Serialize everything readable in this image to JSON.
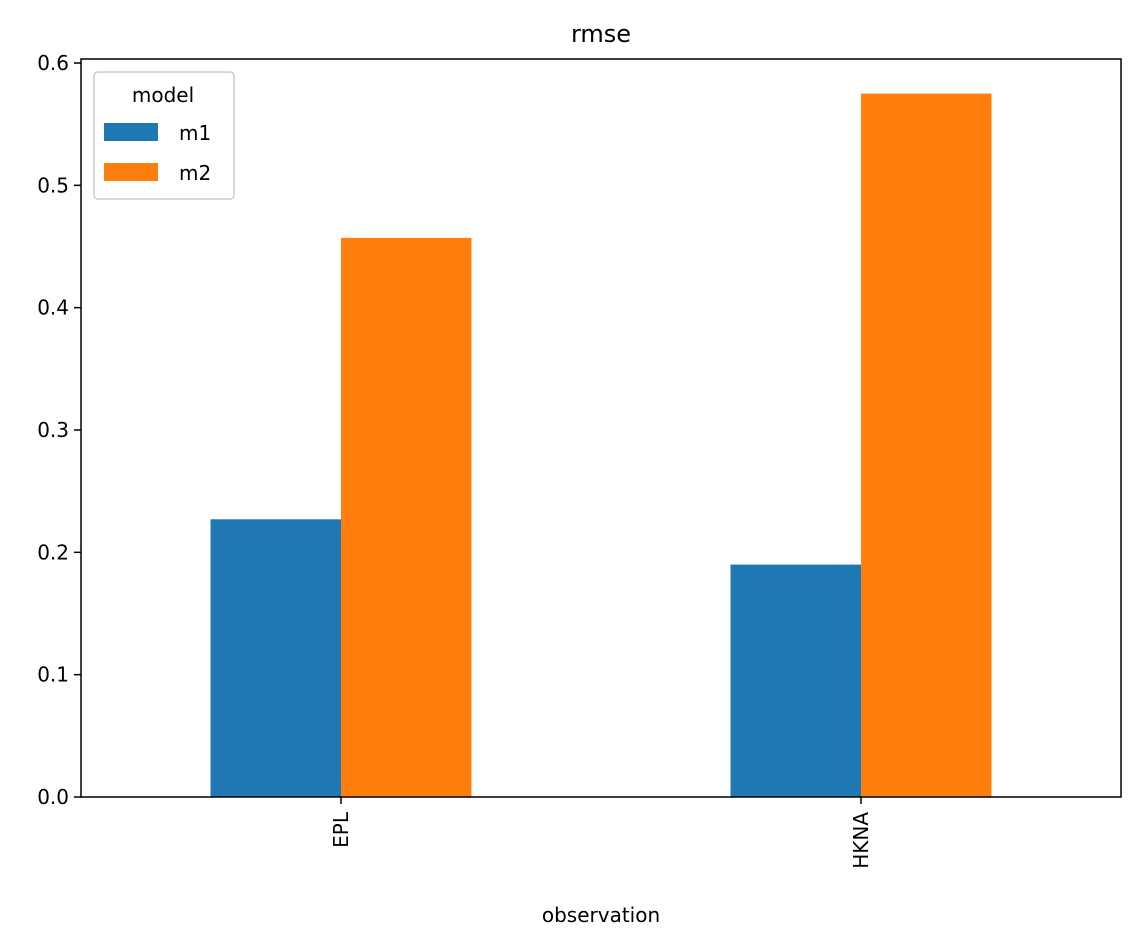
{
  "chart_data": {
    "type": "bar",
    "title": "rmse",
    "xlabel": "observation",
    "ylabel": "",
    "categories": [
      "EPL",
      "HKNA"
    ],
    "series": [
      {
        "name": "m1",
        "values": [
          0.227,
          0.19
        ],
        "color": "#1f77b4"
      },
      {
        "name": "m2",
        "values": [
          0.457,
          0.575
        ],
        "color": "#ff7f0e"
      }
    ],
    "ylim": [
      0,
      0.6
    ],
    "yticks": [
      "0.0",
      "0.1",
      "0.2",
      "0.3",
      "0.4",
      "0.5",
      "0.6"
    ],
    "xtick_rotation": "vertical",
    "grid": false,
    "legend": {
      "title": "model",
      "placement": "top-left"
    }
  }
}
